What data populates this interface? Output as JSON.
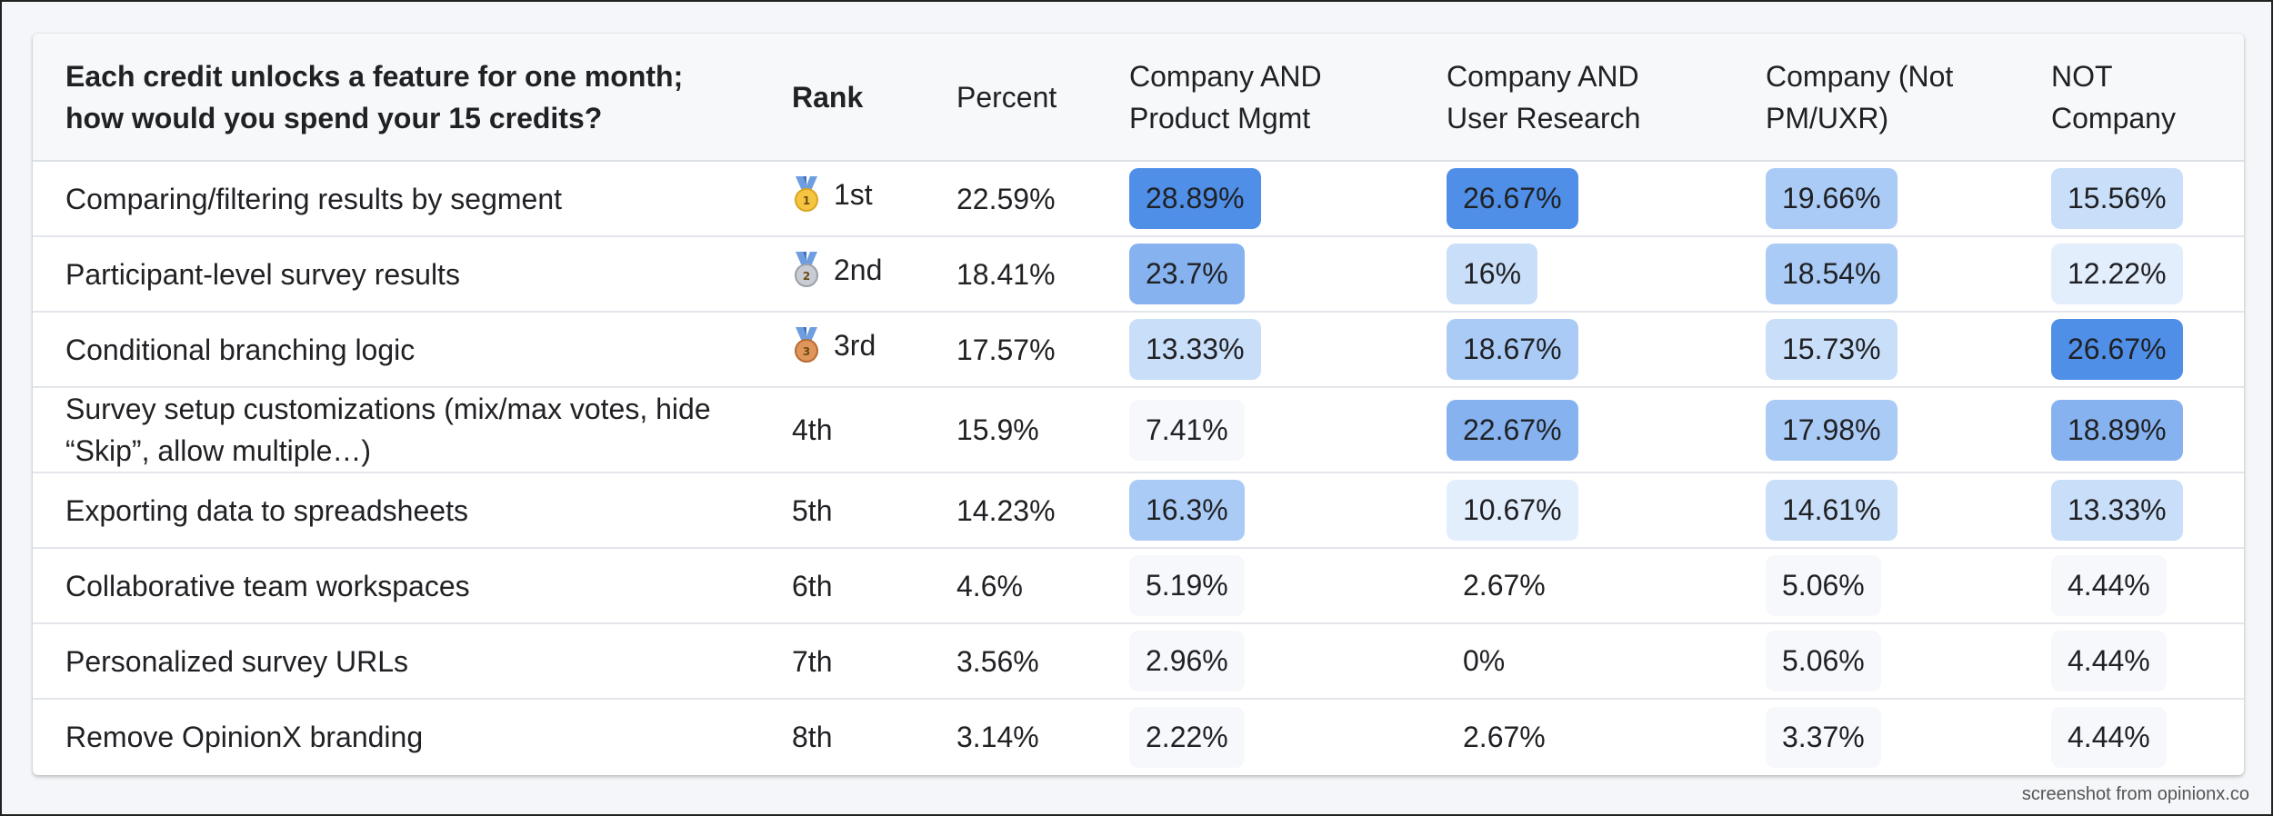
{
  "header": {
    "question": "Each credit unlocks a feature for one month; how would you spend your 15 credits?",
    "rank": "Rank",
    "percent": "Percent",
    "seg1": "Company AND Product Mgmt",
    "seg2": "Company AND User Research",
    "seg3": "Company (Not PM/UXR)",
    "seg4": "NOT Company"
  },
  "rows": [
    {
      "feature": "Comparing/filtering results by segment",
      "rank": "1st",
      "medal": "gold-medal-icon",
      "percent": "22.59%",
      "seg1": "28.89%",
      "seg2": "26.67%",
      "seg3": "19.66%",
      "seg4": "15.56%"
    },
    {
      "feature": "Participant-level survey results",
      "rank": "2nd",
      "medal": "silver-medal-icon",
      "percent": "18.41%",
      "seg1": "23.7%",
      "seg2": "16%",
      "seg3": "18.54%",
      "seg4": "12.22%"
    },
    {
      "feature": "Conditional branching logic",
      "rank": "3rd",
      "medal": "bronze-medal-icon",
      "percent": "17.57%",
      "seg1": "13.33%",
      "seg2": "18.67%",
      "seg3": "15.73%",
      "seg4": "26.67%"
    },
    {
      "feature": "Survey setup customizations (mix/max votes, hide “Skip”, allow multiple…)",
      "rank": "4th",
      "medal": "",
      "percent": "15.9%",
      "seg1": "7.41%",
      "seg2": "22.67%",
      "seg3": "17.98%",
      "seg4": "18.89%"
    },
    {
      "feature": "Exporting data to spreadsheets",
      "rank": "5th",
      "medal": "",
      "percent": "14.23%",
      "seg1": "16.3%",
      "seg2": "10.67%",
      "seg3": "14.61%",
      "seg4": "13.33%"
    },
    {
      "feature": "Collaborative team workspaces",
      "rank": "6th",
      "medal": "",
      "percent": "4.6%",
      "seg1": "5.19%",
      "seg2": "2.67%",
      "seg3": "5.06%",
      "seg4": "4.44%"
    },
    {
      "feature": "Personalized survey URLs",
      "rank": "7th",
      "medal": "",
      "percent": "3.56%",
      "seg1": "2.96%",
      "seg2": "0%",
      "seg3": "5.06%",
      "seg4": "4.44%"
    },
    {
      "feature": "Remove OpinionX branding",
      "rank": "8th",
      "medal": "",
      "percent": "3.14%",
      "seg1": "2.22%",
      "seg2": "2.67%",
      "seg3": "3.37%",
      "seg4": "4.44%"
    }
  ],
  "heat_colors": {
    "level5": "#4f8fe8",
    "level4": "#86b3f0",
    "level3": "#aacbf6",
    "level2": "#c9def9",
    "level1": "#e3eefc",
    "level0": "#f6f8fb"
  },
  "footer": {
    "note": "screenshot from opinionx.co"
  }
}
